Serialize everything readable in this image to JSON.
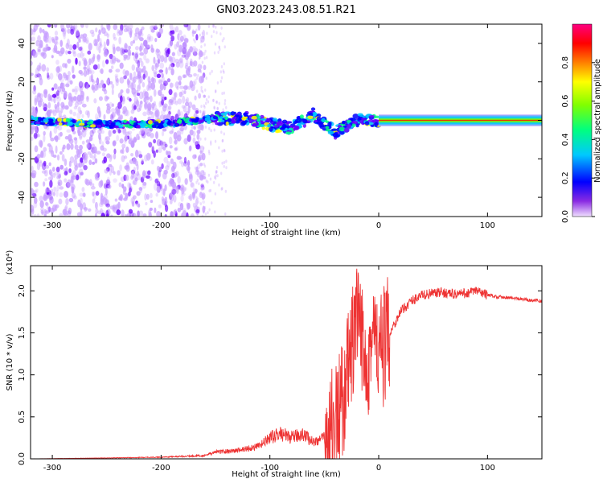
{
  "title": "GN03.2023.243.08.51.R21",
  "chart_data": [
    {
      "type": "heatmap",
      "xlabel": "Height of straight line (km)",
      "ylabel": "Frequency (Hz)",
      "xlim": [
        -320,
        150
      ],
      "ylim": [
        -50,
        50
      ],
      "x_ticks": [
        -300,
        -200,
        -100,
        0,
        100
      ],
      "y_ticks": [
        -40,
        -20,
        0,
        20,
        40
      ],
      "colorbar": {
        "label": "Normalized spectral amplitude",
        "range": [
          0,
          1
        ],
        "ticks": [
          0.0,
          0.2,
          0.4,
          0.6,
          0.8
        ],
        "colormap": [
          "#c8a0ff",
          "#6a00ff",
          "#0000ff",
          "#00c8ff",
          "#00ff80",
          "#80ff00",
          "#ffff00",
          "#ff8000",
          "#ff0000",
          "#ff0080"
        ]
      },
      "ridge": [
        {
          "x": -320,
          "y": 0
        },
        {
          "x": -260,
          "y": -2
        },
        {
          "x": -200,
          "y": -2
        },
        {
          "x": -150,
          "y": 1
        },
        {
          "x": -120,
          "y": 1
        },
        {
          "x": -100,
          "y": -2
        },
        {
          "x": -80,
          "y": -4
        },
        {
          "x": -60,
          "y": 3
        },
        {
          "x": -40,
          "y": -6
        },
        {
          "x": -20,
          "y": 0
        },
        {
          "x": 0,
          "y": 0
        },
        {
          "x": 150,
          "y": 0
        }
      ]
    },
    {
      "type": "line",
      "xlabel": "Height of straight line (km)",
      "ylabel": "SNR (10 * v/v)",
      "yscale_label": "(x10⁴)",
      "xlim": [
        -320,
        150
      ],
      "ylim": [
        0,
        2.3
      ],
      "x_ticks": [
        -300,
        -200,
        -100,
        0,
        100
      ],
      "y_ticks": [
        0.0,
        0.5,
        1.0,
        1.5,
        2.0
      ],
      "color": "#ee3333",
      "series": [
        {
          "x": [
            -320,
            -250,
            -200,
            -160,
            -150,
            -130,
            -110,
            -100,
            -90,
            -80,
            -70,
            -60,
            -50,
            -45,
            -40,
            -35,
            -30,
            -25,
            -20,
            -15,
            -10,
            -5,
            0,
            5,
            10,
            15,
            20,
            30,
            40,
            50,
            60,
            70,
            80,
            90,
            100,
            110,
            120,
            130,
            140,
            150
          ],
          "y": [
            0.0,
            0.01,
            0.02,
            0.04,
            0.08,
            0.1,
            0.15,
            0.25,
            0.3,
            0.25,
            0.3,
            0.2,
            0.25,
            0.35,
            0.45,
            0.6,
            0.9,
            1.3,
            1.6,
            1.4,
            1.2,
            1.5,
            1.2,
            1.35,
            1.5,
            1.62,
            1.75,
            1.88,
            1.95,
            1.97,
            1.98,
            1.96,
            1.97,
            2.0,
            1.95,
            1.93,
            1.92,
            1.9,
            1.89,
            1.88
          ]
        }
      ]
    }
  ]
}
